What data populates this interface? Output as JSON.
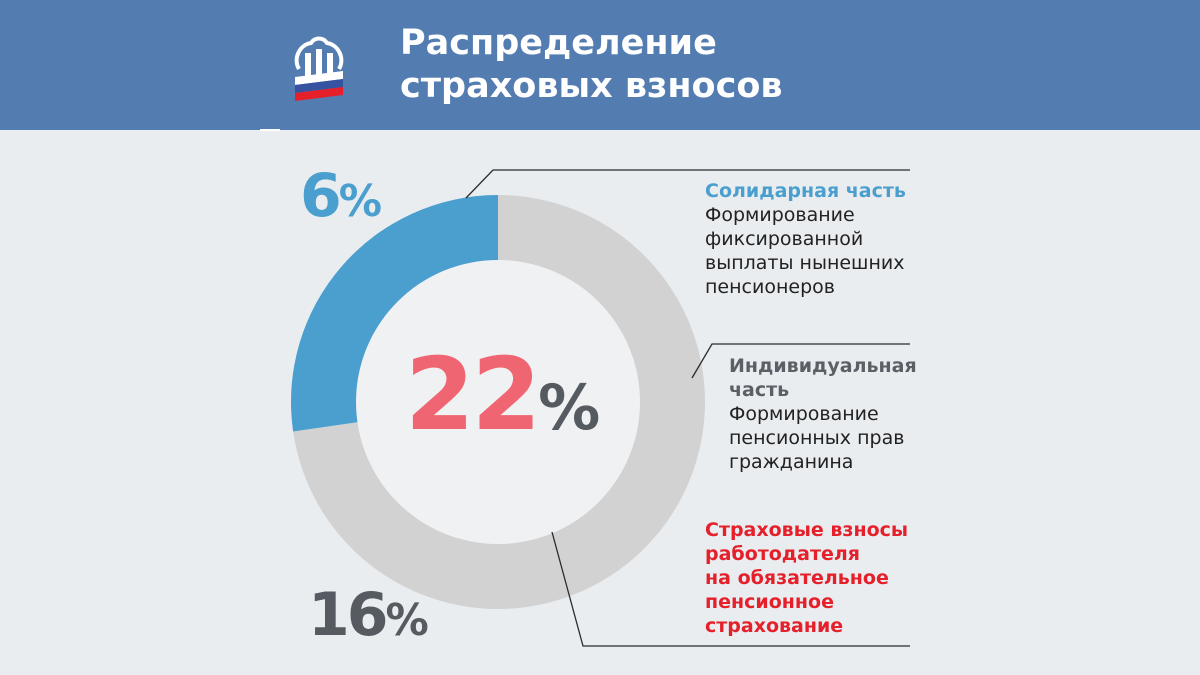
{
  "header": {
    "title_line1": "Распределение",
    "title_line2": "страховых взносов",
    "background": "#537cb1"
  },
  "chart_data": {
    "type": "pie",
    "title": "Распределение страховых взносов",
    "total_label": "22%",
    "total_value": 22,
    "slices": [
      {
        "label": "6%",
        "value": 6,
        "color": "#4a9fce"
      },
      {
        "label": "16%",
        "value": 16,
        "color": "#d2d2d2"
      }
    ]
  },
  "legend": {
    "solidarity": {
      "title": "Солидарная часть",
      "lines": [
        "Формирование",
        "фиксированной",
        "выплаты нынешних",
        "пенсионеров"
      ]
    },
    "individual": {
      "title_lines": [
        "Индивидуальная",
        "часть"
      ],
      "lines": [
        "Формирование",
        "пенсионных прав",
        "гражданина"
      ]
    },
    "contributions": {
      "lines": [
        "Страховые взносы",
        "работодателя",
        "на обязательное",
        "пенсионное",
        "страхование"
      ]
    }
  },
  "colors": {
    "blue": "#4a9fce",
    "gray_ring": "#d2d2d2",
    "center_circle": "#f0f1f3",
    "red_total": "#ef6572",
    "red_text": "#e5202a",
    "dark_gray": "#555b61"
  },
  "icons": {
    "logo": "pension-fund-logo-icon"
  }
}
